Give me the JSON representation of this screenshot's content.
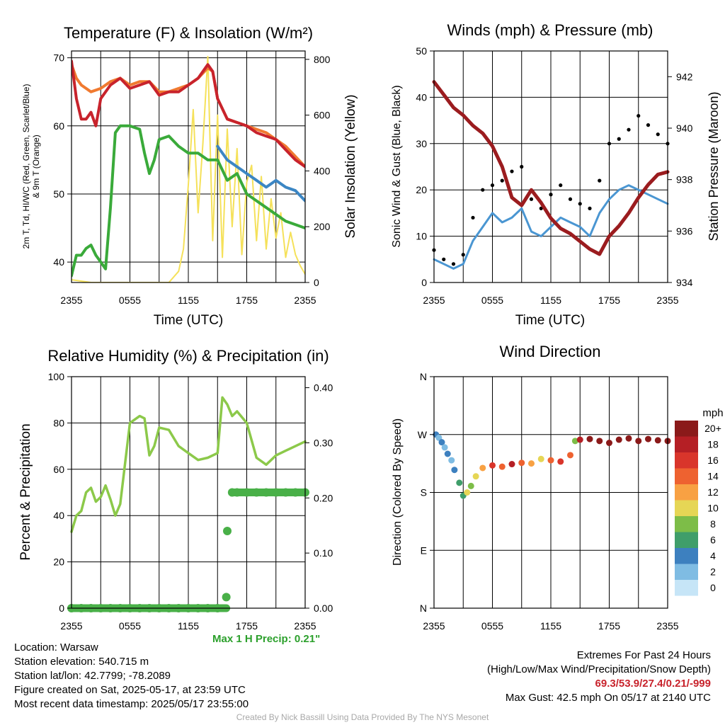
{
  "panels": {
    "temperature": {
      "title": "Temperature (F) & Insolation (W/m²)",
      "ylabel_left_line1": "2m T, Td, HI/WC (Red, Green, Scarlet/Blue)",
      "ylabel_left_line2": "& 9m T (Orange)",
      "ylabel_right": "Solar Insolation (Yellow)",
      "xlabel": "Time (UTC)",
      "x_ticks": [
        "2355",
        "0555",
        "1155",
        "1755",
        "2355"
      ],
      "y_ticks": [
        "40",
        "50",
        "60",
        "70"
      ],
      "y2_ticks": [
        "0",
        "200",
        "400",
        "600",
        "800"
      ]
    },
    "winds": {
      "title": "Winds (mph) & Pressure (mb)",
      "ylabel_left": "Sonic Wind & Gust (Blue, Black)",
      "ylabel_right": "Station Pressure (Maroon)",
      "xlabel": "Time (UTC)",
      "x_ticks": [
        "2355",
        "0555",
        "1155",
        "1755",
        "2355"
      ],
      "y_ticks": [
        "0",
        "10",
        "20",
        "30",
        "40",
        "50"
      ],
      "y2_ticks": [
        "934",
        "936",
        "938",
        "940",
        "942"
      ]
    },
    "humidity": {
      "title": "Relative Humidity (%) & Precipitation (in)",
      "ylabel_left": "Percent & Precipitation",
      "x_ticks": [
        "2355",
        "0555",
        "1155",
        "1755",
        "2355"
      ],
      "y_ticks": [
        "0",
        "20",
        "40",
        "60",
        "80",
        "100"
      ],
      "y2_ticks": [
        "0.00",
        "0.10",
        "0.20",
        "0.30",
        "0.40"
      ],
      "max_precip_label": "Max 1 H Precip: 0.21\""
    },
    "direction": {
      "title": "Wind Direction",
      "ylabel_left": "Direction (Colored By Speed)",
      "x_ticks": [
        "2355",
        "0555",
        "1155",
        "1755",
        "2355"
      ],
      "y_ticks": [
        "N",
        "E",
        "S",
        "W",
        "N"
      ],
      "colorbar_title": "mph",
      "colorbar_labels": [
        "20+",
        "18",
        "16",
        "14",
        "12",
        "10",
        "8",
        "6",
        "4",
        "2",
        "0"
      ]
    }
  },
  "colors": {
    "temperature": "#c8232c",
    "temp_9m": "#f07a30",
    "dewpoint": "#3aaa3a",
    "windchill": "#3b86c4",
    "insolation": "#f5e15a",
    "wind": "#4a96d2",
    "gust": "#000000",
    "pressure": "#9b1c1f",
    "humidity": "#8cc94a",
    "precip": "#49b048",
    "colorbar": [
      "#8b1a1a",
      "#b51f25",
      "#d9352b",
      "#ee6230",
      "#f8a143",
      "#e6d655",
      "#7dbd48",
      "#3f9e6a",
      "#3d80bf",
      "#7fbce3",
      "#c6e5f7"
    ]
  },
  "info": {
    "location": "Location: Warsaw",
    "elevation": "Station elevation: 540.715 m",
    "latlon": "Station lat/lon: 42.7799; -78.2089",
    "created": "Figure created on Sat, 2025-05-17, at 23:59 UTC",
    "recent": "Most recent data timestamp: 2025/05/17 23:55:00",
    "extremes_title": "Extremes For Past 24 Hours",
    "extremes_desc": "(High/Low/Max Wind/Precipitation/Snow Depth)",
    "extremes_values": "69.3/53.9/27.4/0.21/-999",
    "max_gust": "Max Gust: 42.5 mph On 05/17 at 2140 UTC"
  },
  "credit": "Created By Nick Bassill Using Data Provided By The NYS Mesonet",
  "chart_data": [
    {
      "type": "line",
      "title": "Temperature (F) & Insolation (W/m²)",
      "x_unit": "hours after 2355 UTC",
      "xlim": [
        0,
        24
      ],
      "ylim": [
        37,
        71
      ],
      "y2lim": [
        0,
        830
      ],
      "series": [
        {
          "name": "2m T (Red)",
          "axis": "left",
          "x": [
            0,
            0.5,
            1,
            1.5,
            2,
            2.5,
            3,
            4,
            5,
            6,
            7,
            8,
            9,
            10,
            11,
            12,
            13,
            14,
            14.5,
            15,
            16,
            17,
            18,
            19,
            20,
            21,
            22,
            23,
            24
          ],
          "y": [
            69.5,
            64,
            61,
            61,
            62,
            60,
            64,
            66,
            67,
            65.5,
            66,
            66.5,
            64.5,
            65,
            65,
            66,
            67,
            69,
            68,
            64,
            61,
            60.5,
            60,
            59,
            58.5,
            58,
            56.5,
            55,
            54
          ]
        },
        {
          "name": "9m T (Orange)",
          "axis": "left",
          "x": [
            0,
            0.5,
            1,
            2,
            3,
            4,
            5,
            6,
            7,
            8,
            9,
            10,
            11,
            12,
            13,
            14,
            14.5,
            15,
            16,
            17,
            18,
            19,
            20,
            21,
            22,
            23,
            24
          ],
          "y": [
            69,
            67,
            66,
            65,
            65.5,
            66.5,
            67,
            66,
            66.5,
            66.5,
            65,
            65,
            65.5,
            66,
            67,
            68.5,
            68,
            64,
            61,
            60.5,
            60,
            59.5,
            59,
            58,
            57,
            55.5,
            54
          ]
        },
        {
          "name": "Td (Green)",
          "axis": "left",
          "x": [
            0,
            0.5,
            1,
            1.5,
            2,
            2.5,
            3,
            3.5,
            4,
            4.5,
            5,
            6,
            7,
            7.5,
            8,
            8.5,
            9,
            10,
            11,
            12,
            13,
            14,
            15,
            16,
            17,
            18,
            19,
            20,
            21,
            22,
            23,
            24
          ],
          "y": [
            38,
            41,
            41,
            42,
            42.5,
            41,
            40,
            39,
            48,
            59,
            60,
            60,
            59.5,
            56,
            53,
            55,
            58,
            58.5,
            57,
            56,
            56,
            55,
            55,
            52,
            53,
            50,
            49,
            48,
            47,
            46,
            45.5,
            45
          ]
        },
        {
          "name": "HI/WC (Blue)",
          "axis": "left",
          "x": [
            15,
            16,
            17,
            18,
            19,
            20,
            21,
            22,
            23,
            24
          ],
          "y": [
            57,
            55,
            54,
            53,
            52,
            51,
            52,
            51,
            50.5,
            49
          ]
        },
        {
          "name": "Solar Insolation (Yellow)",
          "axis": "right",
          "x": [
            0,
            2,
            4,
            6,
            8,
            10,
            11,
            11.5,
            12,
            12.5,
            13,
            13.5,
            14,
            14.5,
            15,
            15.5,
            16,
            16.5,
            17,
            17.5,
            18,
            18.5,
            19,
            19.5,
            20,
            20.5,
            21,
            21.5,
            22,
            22.5,
            23,
            23.5,
            24
          ],
          "y": [
            10,
            0,
            0,
            0,
            0,
            0,
            40,
            120,
            350,
            620,
            250,
            500,
            810,
            150,
            600,
            90,
            550,
            200,
            480,
            100,
            360,
            420,
            150,
            380,
            120,
            300,
            160,
            250,
            90,
            180,
            100,
            60,
            30
          ]
        }
      ]
    },
    {
      "type": "line",
      "title": "Winds (mph) & Pressure (mb)",
      "x_unit": "hours after 2355 UTC",
      "xlim": [
        0,
        24
      ],
      "ylim": [
        0,
        50
      ],
      "y2lim": [
        934,
        943
      ],
      "series": [
        {
          "name": "Sonic Wind (Blue)",
          "axis": "left",
          "x": [
            0,
            1,
            2,
            3,
            4,
            5,
            6,
            7,
            8,
            9,
            10,
            11,
            12,
            13,
            14,
            15,
            16,
            17,
            18,
            19,
            20,
            21,
            22,
            23,
            24
          ],
          "y": [
            5,
            4,
            3,
            4,
            9,
            12,
            15,
            13,
            14,
            16,
            11,
            10,
            12,
            14,
            13,
            12,
            10,
            15,
            18,
            20,
            21,
            20,
            19,
            18,
            17
          ]
        },
        {
          "name": "Gust (Black)",
          "axis": "left",
          "x": [
            0,
            1,
            2,
            3,
            4,
            5,
            6,
            7,
            8,
            9,
            10,
            11,
            12,
            13,
            14,
            15,
            16,
            17,
            18,
            19,
            20,
            21,
            22,
            23,
            24
          ],
          "y": [
            7,
            5,
            4,
            6,
            14,
            20,
            21,
            22,
            24,
            25,
            18,
            16,
            19,
            21,
            18,
            17,
            16,
            22,
            30,
            31,
            33,
            36,
            34,
            32,
            30
          ]
        },
        {
          "name": "Station Pressure (Maroon)",
          "axis": "right",
          "x": [
            0,
            1,
            2,
            3,
            4,
            5,
            6,
            7,
            8,
            9,
            10,
            11,
            12,
            13,
            14,
            15,
            16,
            17,
            18,
            19,
            20,
            21,
            22,
            23,
            24
          ],
          "y": [
            941.8,
            941.3,
            940.8,
            940.5,
            940.1,
            939.8,
            939.3,
            938.5,
            937.3,
            937.0,
            937.6,
            937.1,
            936.5,
            936.1,
            935.9,
            935.6,
            935.3,
            935.1,
            935.8,
            936.2,
            936.7,
            937.3,
            937.8,
            938.2,
            938.3
          ]
        }
      ]
    },
    {
      "type": "line",
      "title": "Relative Humidity (%) & Precipitation (in)",
      "x_unit": "hours after 2355 UTC",
      "xlim": [
        0,
        24
      ],
      "ylim": [
        0,
        100
      ],
      "y2lim": [
        0,
        0.42
      ],
      "series": [
        {
          "name": "Relative Humidity",
          "axis": "left",
          "x": [
            0,
            0.5,
            1,
            1.5,
            2,
            2.5,
            3,
            3.5,
            4,
            4.5,
            5,
            6,
            7,
            7.5,
            8,
            8.5,
            9,
            10,
            11,
            12,
            13,
            14,
            15,
            15.5,
            16,
            16.5,
            17,
            18,
            19,
            20,
            21,
            22,
            23,
            24
          ],
          "y": [
            33,
            40,
            42,
            50,
            52,
            46,
            48,
            53,
            47,
            40,
            45,
            80,
            83,
            82,
            66,
            70,
            78,
            77,
            70,
            67,
            64,
            65,
            67,
            91,
            88,
            83,
            85,
            80,
            65,
            62,
            66,
            68,
            70,
            72
          ]
        },
        {
          "name": "Precipitation",
          "axis": "right",
          "x": [
            0,
            1,
            2,
            3,
            4,
            5,
            6,
            7,
            8,
            9,
            10,
            11,
            12,
            13,
            14,
            15,
            15.9,
            16,
            16.5,
            17,
            18,
            19,
            20,
            21,
            22,
            23,
            24
          ],
          "y": [
            0,
            0,
            0,
            0,
            0,
            0,
            0,
            0,
            0,
            0,
            0,
            0,
            0,
            0,
            0,
            0,
            0.02,
            0.14,
            0.21,
            0.21,
            0.21,
            0.21,
            0.21,
            0.21,
            0.21,
            0.21,
            0.21
          ]
        }
      ]
    },
    {
      "type": "scatter",
      "title": "Wind Direction",
      "x_unit": "hours after 2355 UTC",
      "xlim": [
        0,
        24
      ],
      "y_unit": "degrees (N=0, E=90, S=180, W=270, N=360)",
      "ylim": [
        0,
        360
      ],
      "color_by": "speed (mph)",
      "points": [
        {
          "x": 0.2,
          "dir": 270,
          "spd": 3
        },
        {
          "x": 0.5,
          "dir": 265,
          "spd": 2
        },
        {
          "x": 0.8,
          "dir": 258,
          "spd": 3
        },
        {
          "x": 1.1,
          "dir": 250,
          "spd": 2
        },
        {
          "x": 1.4,
          "dir": 240,
          "spd": 3
        },
        {
          "x": 1.8,
          "dir": 230,
          "spd": 2
        },
        {
          "x": 2.1,
          "dir": 215,
          "spd": 3
        },
        {
          "x": 2.6,
          "dir": 195,
          "spd": 5
        },
        {
          "x": 3.0,
          "dir": 175,
          "spd": 5
        },
        {
          "x": 3.4,
          "dir": 180,
          "spd": 9
        },
        {
          "x": 3.8,
          "dir": 190,
          "spd": 8
        },
        {
          "x": 4.3,
          "dir": 205,
          "spd": 10
        },
        {
          "x": 5.0,
          "dir": 218,
          "spd": 12
        },
        {
          "x": 6.0,
          "dir": 222,
          "spd": 15
        },
        {
          "x": 7.0,
          "dir": 220,
          "spd": 13
        },
        {
          "x": 8.0,
          "dir": 224,
          "spd": 17
        },
        {
          "x": 9.0,
          "dir": 226,
          "spd": 14
        },
        {
          "x": 10.0,
          "dir": 225,
          "spd": 12
        },
        {
          "x": 11.0,
          "dir": 232,
          "spd": 10
        },
        {
          "x": 12.0,
          "dir": 230,
          "spd": 13
        },
        {
          "x": 13.0,
          "dir": 228,
          "spd": 16
        },
        {
          "x": 14.0,
          "dir": 238,
          "spd": 14
        },
        {
          "x": 14.5,
          "dir": 260,
          "spd": 8
        },
        {
          "x": 15.0,
          "dir": 262,
          "spd": 17
        },
        {
          "x": 16.0,
          "dir": 263,
          "spd": 20
        },
        {
          "x": 17.0,
          "dir": 260,
          "spd": 20
        },
        {
          "x": 18.0,
          "dir": 257,
          "spd": 20
        },
        {
          "x": 19.0,
          "dir": 262,
          "spd": 20
        },
        {
          "x": 20.0,
          "dir": 264,
          "spd": 20
        },
        {
          "x": 21.0,
          "dir": 260,
          "spd": 20
        },
        {
          "x": 22.0,
          "dir": 263,
          "spd": 20
        },
        {
          "x": 23.0,
          "dir": 261,
          "spd": 20
        },
        {
          "x": 24.0,
          "dir": 260,
          "spd": 20
        }
      ]
    }
  ]
}
